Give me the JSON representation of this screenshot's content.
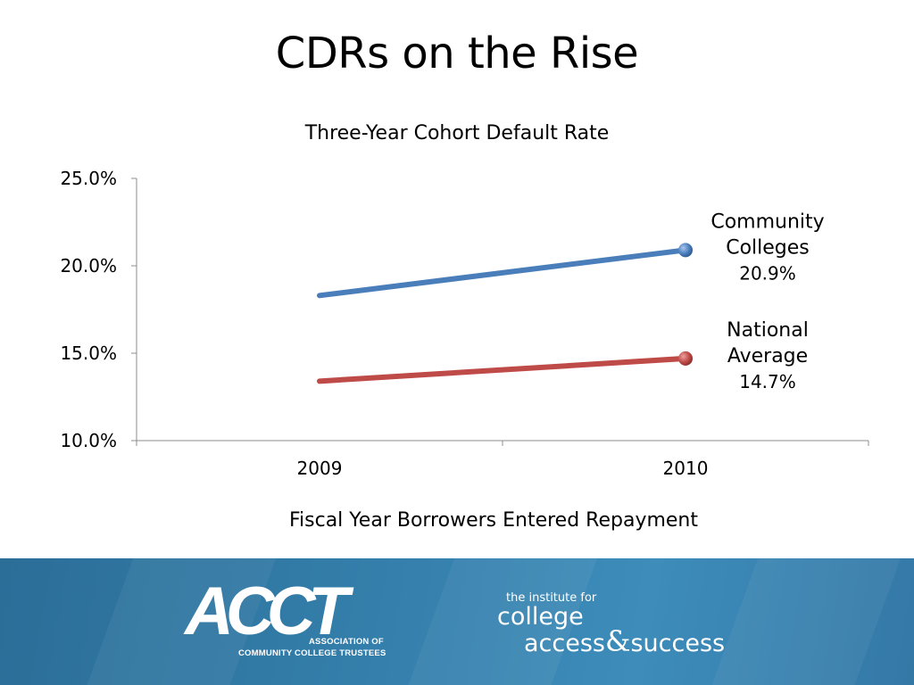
{
  "slide": {
    "title": "CDRs on the Rise"
  },
  "chart_data": {
    "type": "line",
    "title": "Three-Year Cohort Default Rate",
    "xlabel": "Fiscal Year Borrowers Entered Repayment",
    "ylabel": "",
    "categories": [
      "2009",
      "2010"
    ],
    "ylim": [
      10.0,
      25.0
    ],
    "yticks": [
      "10.0%",
      "15.0%",
      "20.0%",
      "25.0%"
    ],
    "ytick_values": [
      10.0,
      15.0,
      20.0,
      25.0
    ],
    "grid": false,
    "legend": "none",
    "series": [
      {
        "name": "Community Colleges",
        "label_lines": [
          "Community",
          "Colleges"
        ],
        "values": [
          18.3,
          20.9
        ],
        "end_label": "20.9%",
        "color": "#4a7ebb"
      },
      {
        "name": "National Average",
        "label_lines": [
          "National",
          "Average"
        ],
        "values": [
          13.4,
          14.7
        ],
        "end_label": "14.7%",
        "color": "#be4b48"
      }
    ]
  },
  "footer": {
    "acct_logo_text": "ACCT",
    "acct_subtitle_line1": "ASSOCIATION OF",
    "acct_subtitle_line2": "COMMUNITY COLLEGE TRUSTEES",
    "icas_line1": "the institute for",
    "icas_line2": "college",
    "icas_line3a": "access",
    "icas_amp": "&",
    "icas_line3b": "success",
    "background_color": "#3580ad"
  }
}
